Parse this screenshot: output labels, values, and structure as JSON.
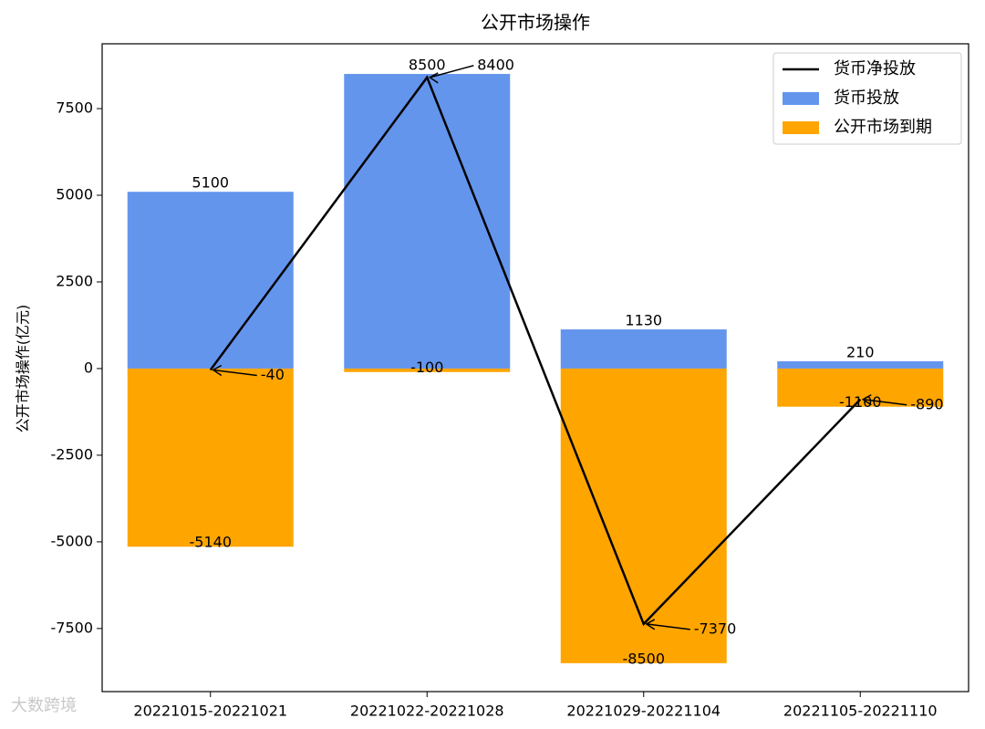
{
  "chart_data": {
    "type": "bar",
    "title": "公开市场操作",
    "ylabel": "公开市场操作(亿元)",
    "categories": [
      "20221015-20221021",
      "20221022-20221028",
      "20221029-20221104",
      "20221105-20221110"
    ],
    "series": [
      {
        "name": "货币投放",
        "type": "bar",
        "color": "#6495ed",
        "values": [
          5100,
          8500,
          1130,
          210
        ]
      },
      {
        "name": "公开市场到期",
        "type": "bar",
        "color": "#ffa500",
        "values": [
          -5140,
          -100,
          -8500,
          -1100
        ]
      },
      {
        "name": "货币净投放",
        "type": "line",
        "color": "#000000",
        "values": [
          -40,
          8400,
          -7370,
          -890
        ]
      }
    ],
    "ylim": [
      -9320,
      9370
    ],
    "yticks": [
      -7500,
      -5000,
      -2500,
      0,
      2500,
      5000,
      7500
    ],
    "legend": "upper right"
  },
  "watermark": "大数跨境"
}
